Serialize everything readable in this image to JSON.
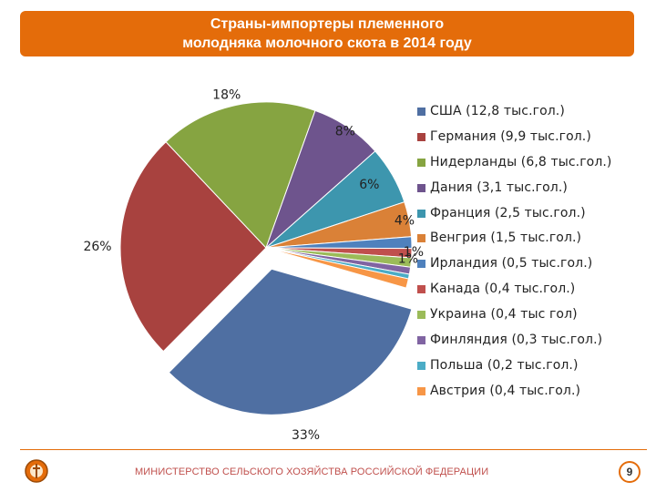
{
  "title": {
    "line1": "Страны-импортеры племенного",
    "line2": "молодняка молочного скота в 2014 году"
  },
  "chart_data": {
    "type": "pie",
    "categories": [
      "США (12,8 тыс.гол.)",
      "Германия (9,9 тыс.гол.)",
      "Нидерланды (6,8 тыс.гол.)",
      "Дания (3,1 тыс.гол.)",
      "Франция (2,5 тыс.гол.)",
      "Венгрия (1,5 тыс.гол.)",
      "Ирландия (0,5 тыс.гол.)",
      "Канада (0,4 тыс.гол.)",
      "Украина (0,4 тыс гол)",
      "Финляндия (0,3 тыс.гол.)",
      "Польша (0,2 тыс.гол.)",
      "Австрия (0,4 тыс.гол.)"
    ],
    "values": [
      12.8,
      9.9,
      6.8,
      3.1,
      2.5,
      1.5,
      0.5,
      0.4,
      0.4,
      0.3,
      0.2,
      0.4
    ],
    "colors": [
      "#4f6fa2",
      "#a8423f",
      "#86a441",
      "#6e548d",
      "#3d96ae",
      "#da8137",
      "#4f81bd",
      "#c0504d",
      "#9bbb59",
      "#8064a2",
      "#4bacc6",
      "#f79646"
    ],
    "data_labels": [
      {
        "text": "33%",
        "slice": 0
      },
      {
        "text": "26%",
        "slice": 1
      },
      {
        "text": "18%",
        "slice": 2
      },
      {
        "text": "8%",
        "slice": 3
      },
      {
        "text": "6%",
        "slice": 4
      },
      {
        "text": "4%",
        "slice": 5
      },
      {
        "text": "1%",
        "slice": 6
      },
      {
        "text": "1%",
        "slice": 7
      }
    ],
    "exploded": [
      "США (12,8 тыс.гол.)"
    ],
    "legend_position": "right"
  },
  "footer": {
    "text": "МИНИСТЕРСТВО СЕЛЬСКОГО ХОЗЯЙСТВА РОССИЙСКОЙ ФЕДЕРАЦИИ",
    "page_number": "9"
  }
}
